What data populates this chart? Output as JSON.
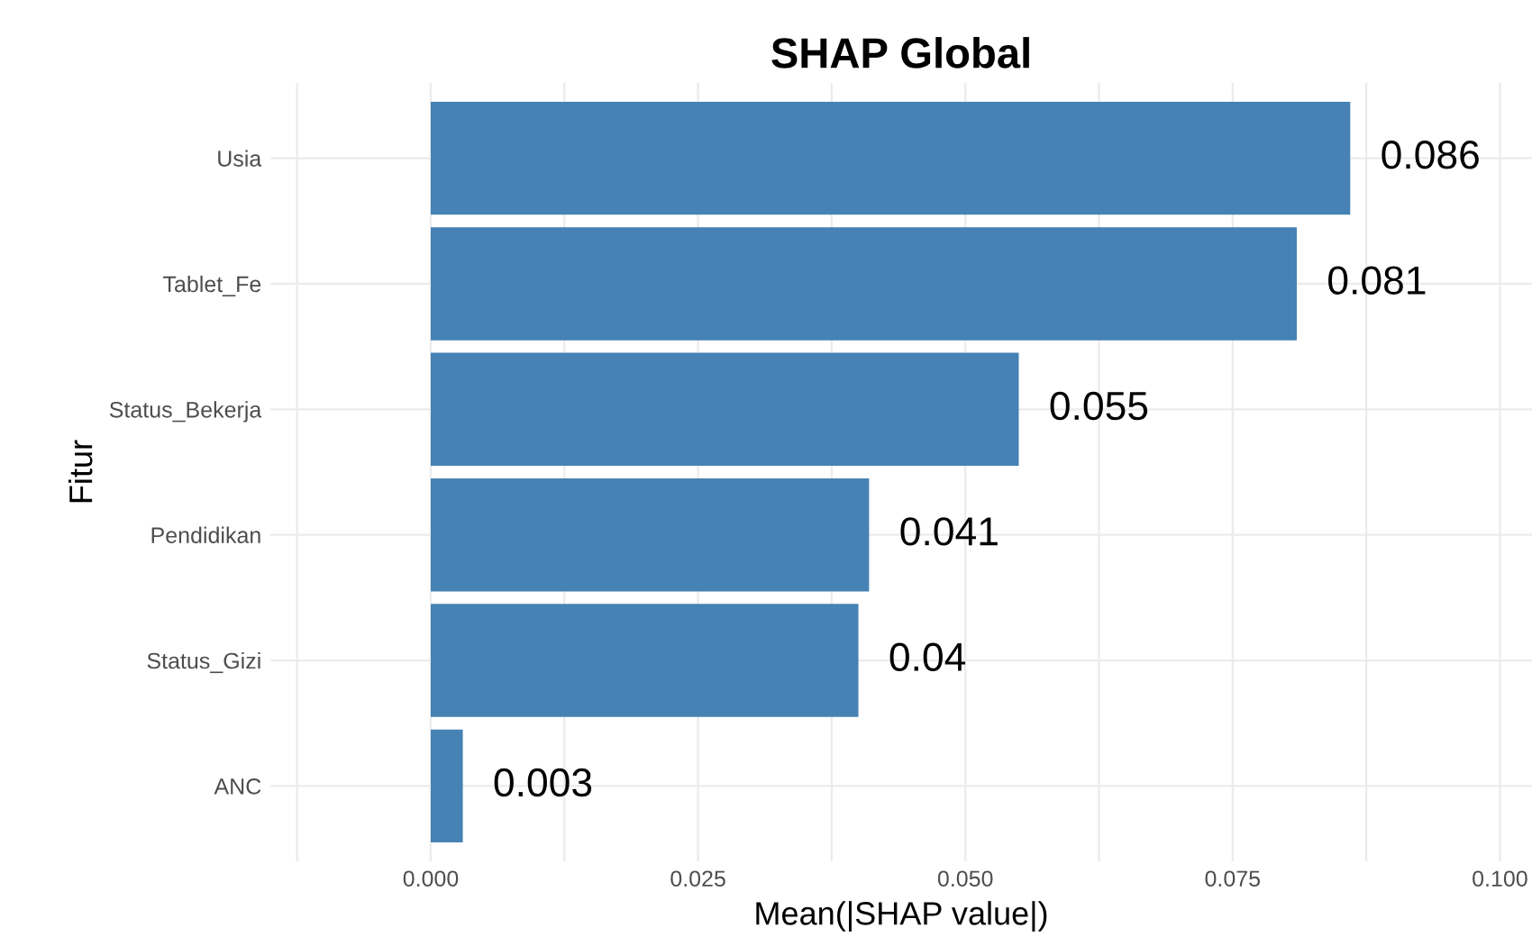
{
  "chart_data": {
    "type": "bar",
    "orientation": "horizontal",
    "title": "SHAP Global",
    "xlabel": "Mean(|SHAP value|)",
    "ylabel": "Fitur",
    "categories": [
      "Usia",
      "Tablet_Fe",
      "Status_Bekerja",
      "Pendidikan",
      "Status_Gizi",
      "ANC"
    ],
    "values": [
      0.086,
      0.081,
      0.055,
      0.041,
      0.04,
      0.003
    ],
    "color": "#4682b4",
    "xlim": [
      -0.015,
      0.103
    ],
    "xticks": [
      {
        "value": -0.0125,
        "label": null
      },
      {
        "value": 0,
        "label": "0.000"
      },
      {
        "value": 0.0125,
        "label": null
      },
      {
        "value": 0.025,
        "label": "0.025"
      },
      {
        "value": 0.0375,
        "label": null
      },
      {
        "value": 0.05,
        "label": "0.050"
      },
      {
        "value": 0.0625,
        "label": null
      },
      {
        "value": 0.075,
        "label": "0.075"
      },
      {
        "value": 0.0875,
        "label": null
      },
      {
        "value": 0.1,
        "label": "0.100"
      }
    ],
    "data_labels": true,
    "grid": true,
    "legend": false
  }
}
